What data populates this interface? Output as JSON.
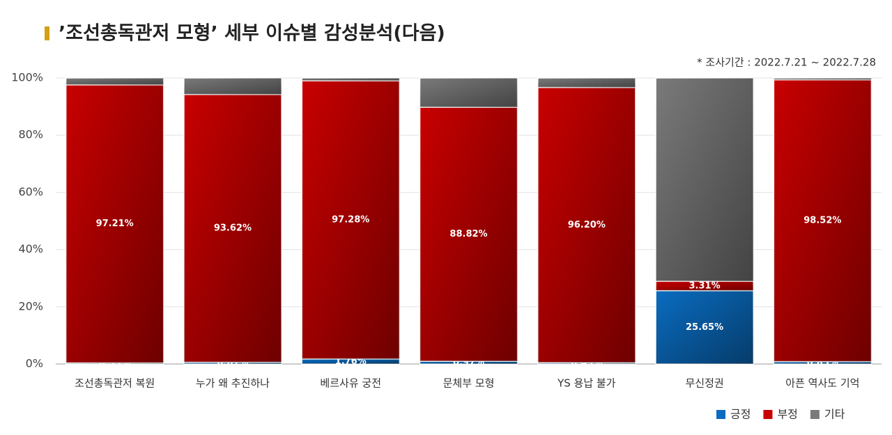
{
  "chart_data": {
    "type": "stacked_bar",
    "title": "’조선총독관저 모형’ 세부 이슈별 감성분석(다음)",
    "subtitle": "* 조사기간 : 2022.7.21 ~ 2022.7.28",
    "categories": [
      "조선총독관저 복원",
      "누가 왜 추진하나",
      "베르사유 궁전",
      "문체부 모형",
      "YS 용납 불가",
      "무신정권",
      "아픈 역사도 기억"
    ],
    "series": [
      {
        "name": "긍정",
        "color": "#0a6cc0",
        "values": [
          0.39,
          0.61,
          1.76,
          0.97,
          0.49,
          25.65,
          0.85
        ],
        "value_labels": [
          "0.39%",
          "0.61%",
          "1.76%",
          "0.97%",
          "0.49%",
          "25.65%",
          "0.85%"
        ]
      },
      {
        "name": "부정",
        "color": "#c80000",
        "values": [
          97.21,
          93.62,
          97.28,
          88.82,
          96.2,
          3.31,
          98.52
        ],
        "value_labels": [
          "97.21%",
          "93.62%",
          "97.28%",
          "88.82%",
          "96.20%",
          "3.31%",
          "98.52%"
        ]
      },
      {
        "name": "기타",
        "color": "#7a7a7a",
        "values": [
          2.4,
          5.77,
          0.96,
          10.21,
          3.31,
          71.04,
          0.63
        ]
      }
    ],
    "ylim": [
      0,
      100
    ],
    "yticks": [
      {
        "value": 0,
        "label": "0%"
      },
      {
        "value": 20,
        "label": "20%"
      },
      {
        "value": 40,
        "label": "40%"
      },
      {
        "value": 60,
        "label": "60%"
      },
      {
        "value": 80,
        "label": "80%"
      },
      {
        "value": 100,
        "label": "100%"
      }
    ],
    "grid": true
  }
}
